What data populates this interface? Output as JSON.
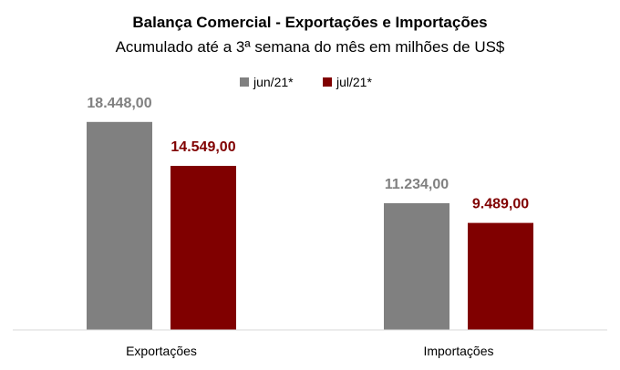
{
  "chart_data": {
    "type": "bar",
    "title": "Balança Comercial - Exportações e Importações",
    "subtitle": "Acumulado até a 3ª semana do mês em milhões de US$",
    "categories": [
      "Exportações",
      "Importações"
    ],
    "series": [
      {
        "name": "jun/21*",
        "color": "#808080",
        "values": [
          18448.0,
          11234.0
        ],
        "labels": [
          "18.448,00",
          "11.234,00"
        ]
      },
      {
        "name": "jul/21*",
        "color": "#800000",
        "values": [
          14549.0,
          9489.0
        ],
        "labels": [
          "14.549,00",
          "9.489,00"
        ]
      }
    ],
    "ylim": [
      0,
      21500
    ],
    "grid": false,
    "legend_position": "top-center"
  }
}
